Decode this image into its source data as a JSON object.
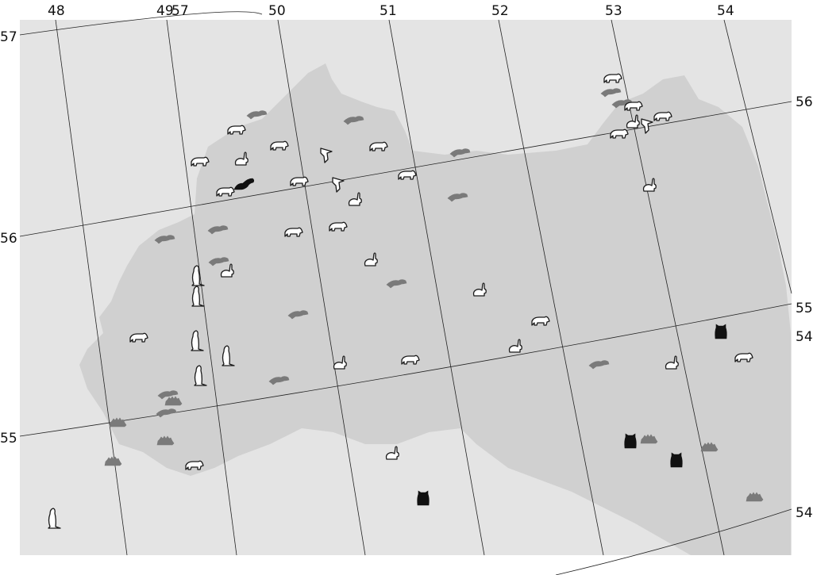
{
  "map": {
    "lon_labels": [
      {
        "id": "lon-48",
        "text": "48"
      },
      {
        "id": "lon-49",
        "text": "49"
      },
      {
        "id": "lon-57-top",
        "text": "57"
      },
      {
        "id": "lon-50",
        "text": "50"
      },
      {
        "id": "lon-51",
        "text": "51"
      },
      {
        "id": "lon-52",
        "text": "52"
      },
      {
        "id": "lon-53",
        "text": "53"
      },
      {
        "id": "lon-54",
        "text": "54"
      }
    ],
    "lat_labels_left": [
      {
        "id": "lat-57",
        "text": "57"
      },
      {
        "id": "lat-56",
        "text": "56"
      },
      {
        "id": "lat-55",
        "text": "55"
      }
    ],
    "lat_labels_right": [
      {
        "id": "lat-56-right",
        "text": "56"
      },
      {
        "id": "lat-55-right",
        "text": "55"
      },
      {
        "id": "lat-54-right-a",
        "text": "54"
      },
      {
        "id": "lat-54-right-b",
        "text": "54"
      }
    ],
    "colors": {
      "sheet": "#dcdcdc",
      "outside_region": "#e4e4e4",
      "region": "#d0d0d0",
      "grid": "#222222",
      "icon_outline": "#1a1a1a",
      "icon_grey": "#7a7a7a",
      "icon_black": "#111111"
    },
    "markers": [
      {
        "icon": "otter",
        "style": "grey"
      },
      {
        "icon": "otter",
        "style": "grey"
      },
      {
        "icon": "bear",
        "style": "outline"
      },
      {
        "icon": "bear",
        "style": "outline"
      },
      {
        "icon": "rabbit",
        "style": "outline"
      },
      {
        "icon": "bear",
        "style": "outline"
      },
      {
        "icon": "bird",
        "style": "outline"
      },
      {
        "icon": "bear",
        "style": "outline"
      },
      {
        "icon": "otter",
        "style": "grey"
      },
      {
        "icon": "bear",
        "style": "outline"
      },
      {
        "icon": "ferret",
        "style": "black"
      },
      {
        "icon": "bear",
        "style": "outline"
      },
      {
        "icon": "bird",
        "style": "outline"
      },
      {
        "icon": "bear",
        "style": "outline"
      },
      {
        "icon": "rabbit",
        "style": "outline"
      },
      {
        "icon": "otter",
        "style": "grey"
      },
      {
        "icon": "bear",
        "style": "outline"
      },
      {
        "icon": "bear",
        "style": "outline"
      },
      {
        "icon": "otter",
        "style": "grey"
      },
      {
        "icon": "otter",
        "style": "grey"
      },
      {
        "icon": "otter",
        "style": "grey"
      },
      {
        "icon": "rabbit",
        "style": "outline"
      },
      {
        "icon": "rabbit",
        "style": "outline"
      },
      {
        "icon": "gopher",
        "style": "outline"
      },
      {
        "icon": "gopher",
        "style": "outline"
      },
      {
        "icon": "otter",
        "style": "grey"
      },
      {
        "icon": "rabbit",
        "style": "outline"
      },
      {
        "icon": "otter",
        "style": "grey"
      },
      {
        "icon": "bear",
        "style": "outline"
      },
      {
        "icon": "gopher",
        "style": "outline"
      },
      {
        "icon": "gopher",
        "style": "outline"
      },
      {
        "icon": "rabbit",
        "style": "outline"
      },
      {
        "icon": "bear",
        "style": "outline"
      },
      {
        "icon": "rabbit",
        "style": "outline"
      },
      {
        "icon": "gopher",
        "style": "outline"
      },
      {
        "icon": "otter",
        "style": "grey"
      },
      {
        "icon": "otter",
        "style": "grey"
      },
      {
        "icon": "otter",
        "style": "grey"
      },
      {
        "icon": "hedgehog",
        "style": "grey"
      },
      {
        "icon": "hedgehog",
        "style": "grey"
      },
      {
        "icon": "hedgehog",
        "style": "grey"
      },
      {
        "icon": "hedgehog",
        "style": "grey"
      },
      {
        "icon": "hedgehog",
        "style": "grey"
      },
      {
        "icon": "bear",
        "style": "outline"
      },
      {
        "icon": "gopher",
        "style": "outline"
      },
      {
        "icon": "rabbit",
        "style": "outline"
      },
      {
        "icon": "hamster",
        "style": "black"
      },
      {
        "icon": "otter",
        "style": "grey"
      },
      {
        "icon": "rabbit",
        "style": "outline"
      },
      {
        "icon": "hamster",
        "style": "black"
      },
      {
        "icon": "bear",
        "style": "outline"
      },
      {
        "icon": "hamster",
        "style": "black"
      },
      {
        "icon": "hamster",
        "style": "black"
      },
      {
        "icon": "hedgehog",
        "style": "grey"
      },
      {
        "icon": "hedgehog",
        "style": "grey"
      },
      {
        "icon": "bear",
        "style": "outline"
      },
      {
        "icon": "otter",
        "style": "grey"
      },
      {
        "icon": "otter",
        "style": "grey"
      },
      {
        "icon": "bear",
        "style": "outline"
      },
      {
        "icon": "bear",
        "style": "outline"
      },
      {
        "icon": "rabbit",
        "style": "outline"
      },
      {
        "icon": "bird",
        "style": "outline"
      },
      {
        "icon": "bear",
        "style": "outline"
      },
      {
        "icon": "bear",
        "style": "outline"
      },
      {
        "icon": "rabbit",
        "style": "outline"
      }
    ]
  }
}
